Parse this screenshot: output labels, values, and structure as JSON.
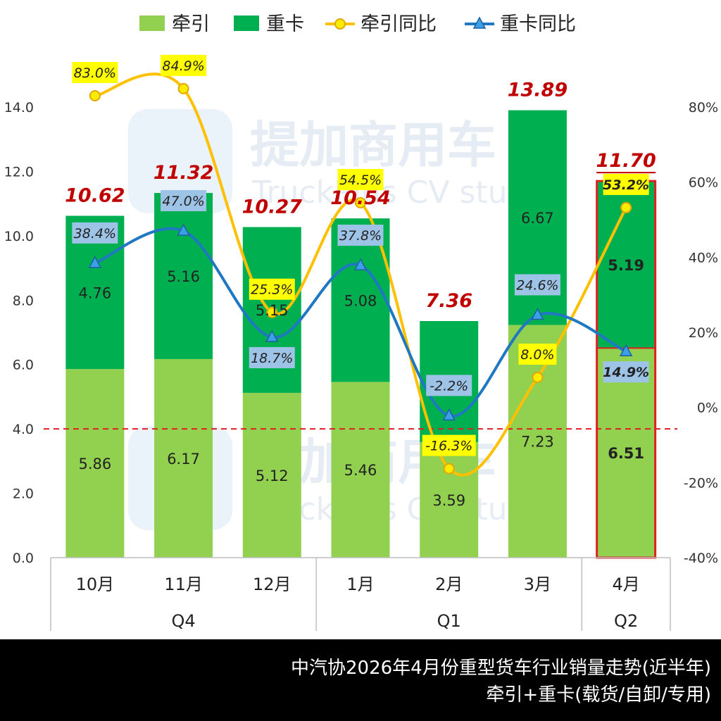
{
  "watermark": {
    "brand": "提加商用车",
    "sub": "TruckPlus CV studio"
  },
  "footer": {
    "line1": "中汽协2026年4月份重型货车行业销量走势(近半年)",
    "line2": "牵引+重卡(载货/自卸/专用)"
  },
  "colors": {
    "tractor": "#92D050",
    "heavy": "#00B050",
    "tractor_yoy": "#FFC000",
    "heavy_yoy": "#1F78C1",
    "total_label": "#C00000",
    "threshold": "#E02020",
    "highlight": "#E02020"
  },
  "chart_data": {
    "type": "bar",
    "stacked": true,
    "categories": [
      "10月",
      "11月",
      "12月",
      "1月",
      "2月",
      "3月",
      "4月"
    ],
    "groups": [
      {
        "label": "Q4",
        "categories": [
          "10月",
          "11月",
          "12月"
        ]
      },
      {
        "label": "Q1",
        "categories": [
          "1月",
          "2月",
          "3月"
        ]
      },
      {
        "label": "Q2",
        "categories": [
          "4月"
        ]
      }
    ],
    "series": [
      {
        "name": "牵引",
        "values": [
          5.86,
          6.17,
          5.12,
          5.46,
          3.59,
          7.23,
          6.51
        ]
      },
      {
        "name": "重卡",
        "values": [
          4.76,
          5.16,
          5.15,
          5.08,
          3.76,
          6.67,
          5.19
        ]
      }
    ],
    "totals": [
      "10.62",
      "11.32",
      "10.27",
      "10.54",
      "7.36",
      "13.89",
      "11.70"
    ],
    "line_series": [
      {
        "name": "牵引同比",
        "marker": "circle",
        "values": [
          83.0,
          84.9,
          25.3,
          54.5,
          -16.3,
          8.0,
          53.2
        ],
        "labels": [
          "83.0%",
          "84.9%",
          "25.3%",
          "54.5%",
          "-16.3%",
          "8.0%",
          "53.2%"
        ]
      },
      {
        "name": "重卡同比",
        "marker": "triangle",
        "values": [
          38.4,
          47.0,
          18.7,
          37.8,
          -2.2,
          24.6,
          14.9
        ],
        "labels": [
          "38.4%",
          "47.0%",
          "18.7%",
          "37.8%",
          "-2.2%",
          "24.6%",
          "14.9%"
        ]
      }
    ],
    "y_left": {
      "min": 0,
      "max": 14,
      "ticks": [
        "0.0",
        "2.0",
        "4.0",
        "6.0",
        "8.0",
        "10.0",
        "12.0",
        "14.0"
      ]
    },
    "y_right": {
      "min": -40,
      "max": 80,
      "ticks": [
        "-40%",
        "-20%",
        "0%",
        "20%",
        "40%",
        "60%",
        "80%"
      ]
    },
    "reference_line": {
      "value": 4.0,
      "style": "dashed"
    },
    "highlight_category": "4月",
    "legend": {
      "position": "top"
    },
    "grid": false
  }
}
